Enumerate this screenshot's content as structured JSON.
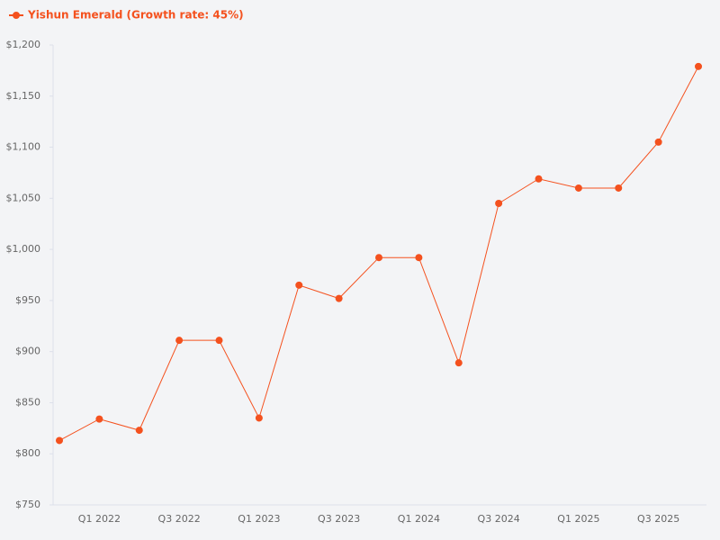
{
  "chart_data": {
    "type": "line",
    "categories": [
      null,
      "Q1 2022",
      null,
      "Q3 2022",
      null,
      "Q1 2023",
      null,
      "Q3 2023",
      null,
      "Q1 2024",
      null,
      "Q3 2024",
      null,
      "Q1 2025",
      null,
      "Q3 2025",
      null
    ],
    "series": [
      {
        "name": "Yishun Emerald (Growth rate: 45%)",
        "color": "#f4511e",
        "values": [
          813,
          834,
          823,
          911,
          911,
          835,
          965,
          952,
          992,
          992,
          889,
          1045,
          1069,
          1060,
          1060,
          1105,
          1179
        ]
      }
    ],
    "ylim": [
      750,
      1200
    ],
    "yticks": [
      {
        "value": 750,
        "label": "$750"
      },
      {
        "value": 800,
        "label": "$800"
      },
      {
        "value": 850,
        "label": "$850"
      },
      {
        "value": 900,
        "label": "$900"
      },
      {
        "value": 950,
        "label": "$950"
      },
      {
        "value": 1000,
        "label": "$1,000"
      },
      {
        "value": 1050,
        "label": "$1,050"
      },
      {
        "value": 1100,
        "label": "$1,100"
      },
      {
        "value": 1150,
        "label": "$1,150"
      },
      {
        "value": 1200,
        "label": "$1,200"
      }
    ],
    "legend": "top-left",
    "grid": false
  }
}
